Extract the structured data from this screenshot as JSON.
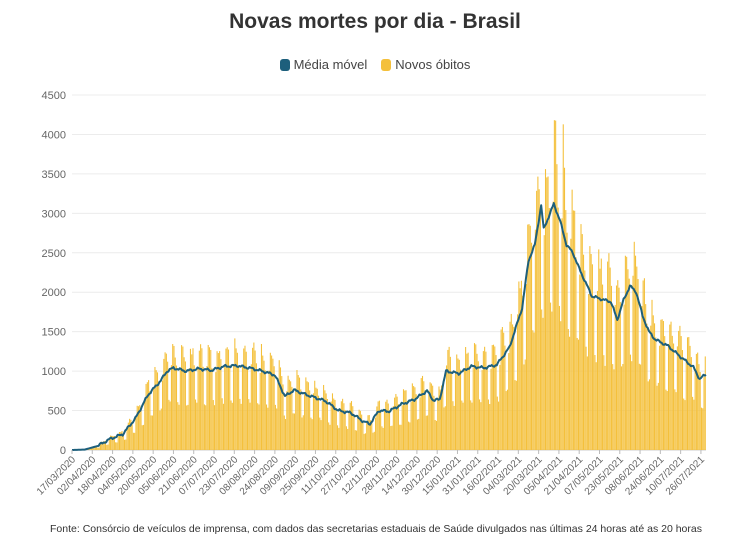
{
  "chart_data": {
    "type": "bar+line",
    "title": "Novas mortes por dia - Brasil",
    "legend": [
      {
        "name": "Média móvel",
        "color": "#1d5f7c"
      },
      {
        "name": "Novos óbitos",
        "color": "#f4c03b"
      }
    ],
    "ylim": [
      0,
      4500
    ],
    "yticks": [
      0,
      500,
      1000,
      1500,
      2000,
      2500,
      3000,
      3500,
      4000,
      4500
    ],
    "x_start_date": "17/03/2020",
    "n_days": 500,
    "xtick_labels": [
      "17/03/2020",
      "02/04/2020",
      "18/04/2020",
      "04/05/2020",
      "20/05/2020",
      "05/06/2020",
      "21/06/2020",
      "07/07/2020",
      "23/07/2020",
      "08/08/2020",
      "24/08/2020",
      "09/09/2020",
      "25/09/2020",
      "11/10/2020",
      "27/10/2020",
      "12/11/2020",
      "28/11/2020",
      "14/12/2020",
      "30/12/2020",
      "15/01/2021",
      "31/01/2021",
      "16/02/2021",
      "04/03/2021",
      "20/03/2021",
      "05/04/2021",
      "21/04/2021",
      "07/05/2021",
      "23/05/2021",
      "08/06/2021",
      "24/06/2021",
      "10/07/2021",
      "26/07/2021"
    ],
    "moving_average_keypoints": [
      [
        0,
        0
      ],
      [
        10,
        5
      ],
      [
        20,
        50
      ],
      [
        30,
        140
      ],
      [
        40,
        200
      ],
      [
        50,
        400
      ],
      [
        60,
        700
      ],
      [
        70,
        880
      ],
      [
        75,
        1000
      ],
      [
        80,
        1040
      ],
      [
        90,
        1000
      ],
      [
        100,
        1030
      ],
      [
        110,
        1010
      ],
      [
        120,
        1060
      ],
      [
        130,
        1070
      ],
      [
        140,
        1040
      ],
      [
        150,
        1000
      ],
      [
        160,
        950
      ],
      [
        168,
        680
      ],
      [
        175,
        760
      ],
      [
        185,
        700
      ],
      [
        200,
        620
      ],
      [
        210,
        500
      ],
      [
        220,
        470
      ],
      [
        230,
        360
      ],
      [
        235,
        330
      ],
      [
        242,
        500
      ],
      [
        250,
        490
      ],
      [
        260,
        580
      ],
      [
        270,
        640
      ],
      [
        280,
        750
      ],
      [
        285,
        630
      ],
      [
        290,
        640
      ],
      [
        295,
        1000
      ],
      [
        305,
        970
      ],
      [
        315,
        1060
      ],
      [
        325,
        1040
      ],
      [
        335,
        1080
      ],
      [
        345,
        1300
      ],
      [
        355,
        1800
      ],
      [
        360,
        2400
      ],
      [
        365,
        2600
      ],
      [
        370,
        3100
      ],
      [
        372,
        2800
      ],
      [
        380,
        3120
      ],
      [
        385,
        2900
      ],
      [
        390,
        2600
      ],
      [
        395,
        2500
      ],
      [
        400,
        2300
      ],
      [
        410,
        1950
      ],
      [
        420,
        1900
      ],
      [
        425,
        1880
      ],
      [
        430,
        1650
      ],
      [
        435,
        1900
      ],
      [
        440,
        2080
      ],
      [
        445,
        2000
      ],
      [
        450,
        1700
      ],
      [
        455,
        1500
      ],
      [
        460,
        1400
      ],
      [
        470,
        1320
      ],
      [
        480,
        1180
      ],
      [
        490,
        1050
      ],
      [
        495,
        900
      ],
      [
        500,
        960
      ]
    ],
    "bar_note": "Novos óbitos: one bar per day, weekly oscillation around the moving average; peak approx. 4200 in early April 2021"
  },
  "footnote": "Fonte: Consórcio de veículos de imprensa, com dados das secretarias estaduais de Saúde divulgados nas últimas 24 horas até as 20 horas"
}
